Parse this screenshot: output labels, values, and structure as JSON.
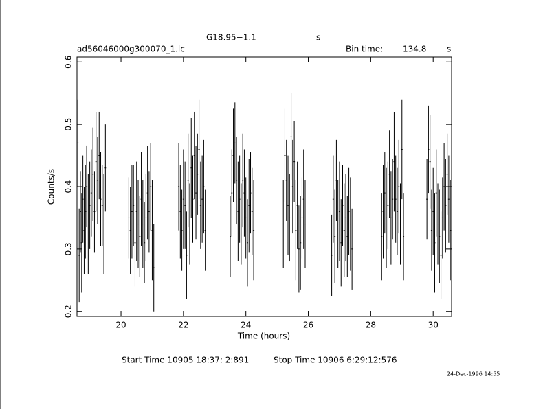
{
  "chart_data": {
    "type": "errorbar",
    "title": "G18.95−1.1",
    "title_unit": "s",
    "subtitle": "ad56046000g300070_1.lc",
    "bin_time_label": "Bin time:",
    "bin_time": "134.8",
    "bin_time_unit": "s",
    "x_label": "Time (hours)",
    "y_label": "Counts/s",
    "start_time": "Start Time 10905 18:37: 2:891",
    "stop_time": "Stop Time 10906  6:29:12:576",
    "date_stamp": "24-Dec-1996 14:55",
    "color": "#000000",
    "xlim": [
      18.59,
      30.59
    ],
    "ylim": [
      0.192,
      0.608
    ],
    "xticks": [
      20,
      22,
      24,
      26,
      28,
      30
    ],
    "yticks": [
      0.2,
      0.3,
      0.4,
      0.5,
      0.6
    ],
    "x": [
      18.62,
      18.66,
      18.7,
      18.74,
      18.78,
      18.82,
      18.86,
      18.9,
      18.95,
      19.0,
      19.05,
      19.1,
      19.15,
      19.2,
      19.25,
      19.3,
      19.35,
      19.4,
      19.45,
      19.5,
      20.25,
      20.3,
      20.35,
      20.4,
      20.45,
      20.5,
      20.55,
      20.6,
      20.65,
      20.7,
      20.75,
      20.8,
      20.85,
      20.9,
      20.95,
      21.0,
      21.05,
      21.85,
      21.9,
      21.95,
      22.0,
      22.05,
      22.1,
      22.15,
      22.2,
      22.25,
      22.3,
      22.35,
      22.4,
      22.45,
      22.5,
      22.55,
      22.6,
      22.65,
      22.7,
      23.5,
      23.55,
      23.6,
      23.65,
      23.7,
      23.75,
      23.8,
      23.85,
      23.9,
      23.95,
      24.0,
      24.05,
      24.1,
      24.15,
      24.2,
      24.25,
      25.2,
      25.25,
      25.3,
      25.35,
      25.4,
      25.45,
      25.5,
      25.55,
      25.6,
      25.65,
      25.7,
      25.75,
      25.8,
      25.85,
      25.9,
      26.75,
      26.8,
      26.85,
      26.9,
      26.95,
      27.0,
      27.05,
      27.1,
      27.15,
      27.2,
      27.25,
      27.3,
      27.35,
      27.4,
      28.35,
      28.4,
      28.45,
      28.5,
      28.55,
      28.6,
      28.65,
      28.7,
      28.75,
      28.8,
      28.85,
      28.9,
      28.95,
      29.0,
      29.05,
      29.8,
      29.85,
      29.9,
      29.95,
      30.0,
      30.05,
      30.1,
      30.15,
      30.2,
      30.25,
      30.3,
      30.35,
      30.4,
      30.45,
      30.5,
      30.55
    ],
    "values": [
      0.47,
      0.29,
      0.36,
      0.31,
      0.38,
      0.33,
      0.36,
      0.4,
      0.34,
      0.37,
      0.39,
      0.42,
      0.36,
      0.44,
      0.41,
      0.45,
      0.38,
      0.37,
      0.34,
      0.43,
      0.35,
      0.33,
      0.36,
      0.37,
      0.31,
      0.36,
      0.34,
      0.32,
      0.38,
      0.34,
      0.31,
      0.35,
      0.39,
      0.36,
      0.4,
      0.33,
      0.27,
      0.4,
      0.36,
      0.33,
      0.38,
      0.37,
      0.29,
      0.41,
      0.34,
      0.43,
      0.38,
      0.45,
      0.39,
      0.42,
      0.46,
      0.37,
      0.38,
      0.4,
      0.33,
      0.32,
      0.39,
      0.45,
      0.47,
      0.41,
      0.36,
      0.38,
      0.34,
      0.41,
      0.39,
      0.35,
      0.31,
      0.37,
      0.39,
      0.36,
      0.33,
      0.34,
      0.45,
      0.41,
      0.37,
      0.35,
      0.48,
      0.4,
      0.44,
      0.33,
      0.37,
      0.3,
      0.31,
      0.35,
      0.38,
      0.34,
      0.29,
      0.38,
      0.32,
      0.41,
      0.34,
      0.36,
      0.31,
      0.37,
      0.33,
      0.35,
      0.32,
      0.36,
      0.34,
      0.3,
      0.32,
      0.36,
      0.39,
      0.35,
      0.37,
      0.42,
      0.35,
      0.38,
      0.44,
      0.38,
      0.36,
      0.4,
      0.34,
      0.46,
      0.32,
      0.38,
      0.46,
      0.44,
      0.33,
      0.36,
      0.31,
      0.39,
      0.34,
      0.32,
      0.29,
      0.35,
      0.4,
      0.37,
      0.42,
      0.38,
      0.33
    ],
    "errors": [
      0.07,
      0.075,
      0.065,
      0.08,
      0.07,
      0.07,
      0.075,
      0.065,
      0.08,
      0.07,
      0.07,
      0.075,
      0.065,
      0.08,
      0.07,
      0.07,
      0.075,
      0.065,
      0.08,
      0.07,
      0.065,
      0.07,
      0.075,
      0.065,
      0.07,
      0.08,
      0.07,
      0.065,
      0.075,
      0.07,
      0.065,
      0.07,
      0.075,
      0.065,
      0.07,
      0.08,
      0.07,
      0.07,
      0.075,
      0.065,
      0.08,
      0.07,
      0.07,
      0.075,
      0.065,
      0.08,
      0.07,
      0.07,
      0.075,
      0.065,
      0.08,
      0.07,
      0.07,
      0.075,
      0.065,
      0.065,
      0.07,
      0.075,
      0.065,
      0.07,
      0.08,
      0.07,
      0.065,
      0.075,
      0.07,
      0.065,
      0.07,
      0.075,
      0.065,
      0.07,
      0.08,
      0.07,
      0.075,
      0.065,
      0.08,
      0.07,
      0.07,
      0.075,
      0.065,
      0.08,
      0.07,
      0.07,
      0.075,
      0.065,
      0.08,
      0.07,
      0.065,
      0.07,
      0.075,
      0.065,
      0.07,
      0.08,
      0.07,
      0.065,
      0.075,
      0.07,
      0.065,
      0.07,
      0.075,
      0.065,
      0.07,
      0.075,
      0.065,
      0.08,
      0.07,
      0.07,
      0.075,
      0.065,
      0.08,
      0.07,
      0.07,
      0.075,
      0.065,
      0.08,
      0.07,
      0.065,
      0.07,
      0.075,
      0.065,
      0.07,
      0.08,
      0.07,
      0.065,
      0.075,
      0.07,
      0.065,
      0.07,
      0.075,
      0.065,
      0.07,
      0.08
    ]
  }
}
